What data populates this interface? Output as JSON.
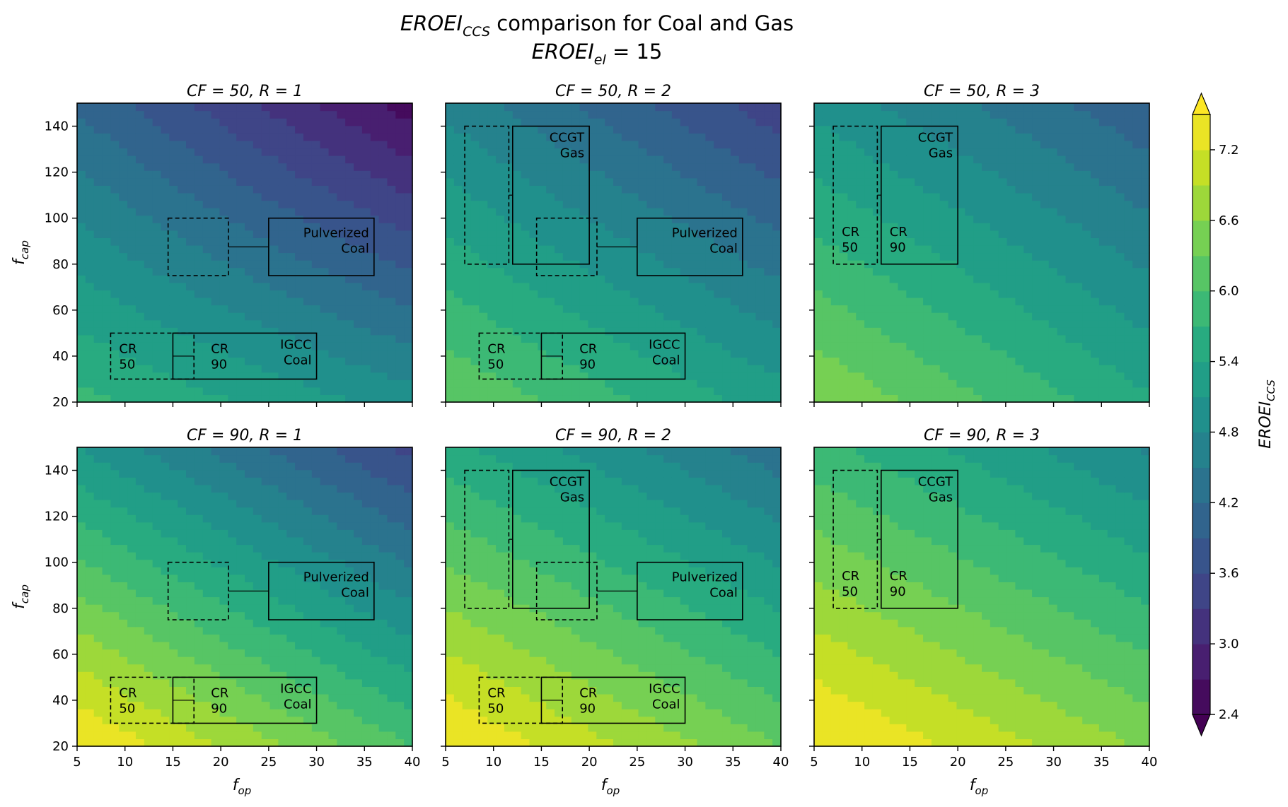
{
  "figure": {
    "title_main": "EROEI",
    "title_main_sub": "CCS",
    "title_rest": " comparison for Coal and Gas",
    "title_line2": "EROEI",
    "title_line2_sub": "el",
    "title_line2_rest": " = 15"
  },
  "chart_data": {
    "type": "heatmap",
    "xlabel": "f",
    "xlabel_sub": "op",
    "ylabel": "f",
    "ylabel_sub": "cap",
    "xlim": [
      5,
      40
    ],
    "ylim": [
      20,
      150
    ],
    "xticks": [
      5,
      10,
      15,
      20,
      25,
      30,
      35,
      40
    ],
    "yticks": [
      20,
      40,
      60,
      80,
      100,
      120,
      140
    ],
    "colorbar": {
      "label": "EROEI",
      "label_sub": "CCS",
      "ticks": [
        "2.4",
        "3.0",
        "3.6",
        "4.2",
        "4.8",
        "5.4",
        "6.0",
        "6.6",
        "7.2"
      ],
      "colormap": "viridis",
      "extend": "both"
    },
    "panels": [
      {
        "title": "CF = 50, R = 1",
        "show_gas": false,
        "show_coal": true,
        "corners": [
          5.8,
          4.95,
          4.15,
          2.55
        ]
      },
      {
        "title": "CF = 50, R = 2",
        "show_gas": true,
        "show_coal": true,
        "corners": [
          6.3,
          5.25,
          4.7,
          3.4
        ]
      },
      {
        "title": "CF = 50, R = 3",
        "show_gas": true,
        "show_coal": false,
        "corners": [
          6.6,
          5.45,
          5.0,
          3.95
        ]
      },
      {
        "title": "CF = 90, R = 1",
        "show_gas": false,
        "show_coal": true,
        "corners": [
          7.55,
          6.0,
          5.1,
          3.5
        ]
      },
      {
        "title": "CF = 90, R = 2",
        "show_gas": true,
        "show_coal": true,
        "corners": [
          7.55,
          6.3,
          5.5,
          4.3
        ]
      },
      {
        "title": "CF = 90, R = 3",
        "show_gas": true,
        "show_coal": false,
        "corners": [
          7.6,
          6.55,
          5.8,
          4.75
        ]
      }
    ],
    "regions": {
      "pulverized_coal": {
        "label": "Pulverized\nCoal",
        "cr90": [
          25,
          36,
          75,
          100
        ],
        "cr50": [
          14.5,
          20.8,
          75,
          100
        ]
      },
      "igcc_coal": {
        "label": "IGCC\nCoal",
        "cr90": [
          15,
          30,
          30,
          50
        ],
        "cr50": [
          8.5,
          17.2,
          30,
          50
        ]
      },
      "ccgt_gas": {
        "label": "CCGT\nGas",
        "cr90": [
          12,
          20,
          80,
          140
        ],
        "cr50": [
          7,
          11.6,
          80,
          140
        ]
      }
    },
    "cr_labels": {
      "cr50": "CR\n50",
      "cr90": "CR\n90"
    }
  }
}
